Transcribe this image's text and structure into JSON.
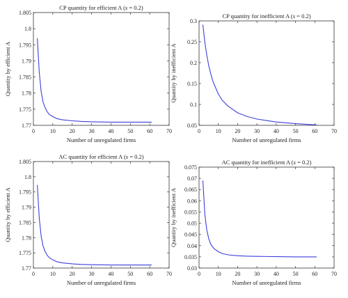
{
  "colors": {
    "line": "#3b3fdc",
    "axis": "#333333",
    "text": "#222222",
    "background": "#ffffff"
  },
  "chart_data": [
    {
      "type": "line",
      "title_parts": [
        "CP quantity for efficient A (",
        "s",
        " = 0.2)"
      ],
      "xlabel": "Number of unregulated firms",
      "ylabel": "Quantity by efficient A",
      "xlim": [
        0,
        70
      ],
      "ylim": [
        1.77,
        1.805
      ],
      "xticks": [
        "0",
        "10",
        "20",
        "30",
        "40",
        "50",
        "60",
        "70"
      ],
      "yticks": [
        "1.77",
        "1.775",
        "1.78",
        "1.785",
        "1.79",
        "1.795",
        "1.8",
        "1.805"
      ],
      "grid": false,
      "series": [
        {
          "x": [
            2,
            3,
            4,
            5,
            6,
            7,
            8,
            10,
            12,
            15,
            20,
            25,
            30,
            40,
            50,
            61
          ],
          "y": [
            1.797,
            1.7865,
            1.7805,
            1.7772,
            1.7755,
            1.7743,
            1.7735,
            1.7727,
            1.7721,
            1.7717,
            1.7714,
            1.7712,
            1.7711,
            1.771,
            1.771,
            1.771
          ]
        }
      ]
    },
    {
      "type": "line",
      "title_parts": [
        "CP quantity for inefficient A (",
        "s",
        " = 0.2)"
      ],
      "xlabel": "Number of unregulated firms",
      "ylabel": "Quantity by inefficient A",
      "xlim": [
        0,
        70
      ],
      "ylim": [
        0.05,
        0.3
      ],
      "xticks": [
        "0",
        "10",
        "20",
        "30",
        "40",
        "50",
        "60",
        "70"
      ],
      "yticks": [
        "0.05",
        "0.1",
        "0.15",
        "0.2",
        "0.25",
        "0.3"
      ],
      "grid": false,
      "series": [
        {
          "x": [
            2,
            3,
            4,
            5,
            6,
            7,
            8,
            10,
            12,
            15,
            20,
            25,
            30,
            40,
            50,
            61
          ],
          "y": [
            0.291,
            0.249,
            0.218,
            0.193,
            0.175,
            0.158,
            0.146,
            0.125,
            0.11,
            0.096,
            0.08,
            0.071,
            0.065,
            0.058,
            0.054,
            0.051
          ]
        }
      ]
    },
    {
      "type": "line",
      "title_parts": [
        "AC quantity for efficient A (",
        "s",
        " = 0.2)"
      ],
      "xlabel": "Number of unregulated firms",
      "ylabel": "Quantity by efficient A",
      "xlim": [
        0,
        70
      ],
      "ylim": [
        1.77,
        1.805
      ],
      "xticks": [
        "0",
        "10",
        "20",
        "30",
        "40",
        "50",
        "60",
        "70"
      ],
      "yticks": [
        "1.77",
        "1.775",
        "1.78",
        "1.785",
        "1.79",
        "1.795",
        "1.8",
        "1.805"
      ],
      "grid": false,
      "series": [
        {
          "x": [
            2,
            3,
            4,
            5,
            6,
            7,
            8,
            10,
            12,
            15,
            20,
            25,
            30,
            40,
            50,
            61
          ],
          "y": [
            1.7973,
            1.7865,
            1.7805,
            1.7772,
            1.7755,
            1.7743,
            1.7735,
            1.7727,
            1.7721,
            1.7717,
            1.7714,
            1.7712,
            1.7711,
            1.771,
            1.771,
            1.771
          ]
        }
      ]
    },
    {
      "type": "line",
      "title_parts": [
        "AC quantity for inefficient A (",
        "s",
        " = 0.2)"
      ],
      "xlabel": "Number of unregulated firms",
      "ylabel": "Quantity by inefficient A",
      "xlim": [
        0,
        70
      ],
      "ylim": [
        0.03,
        0.075
      ],
      "xticks": [
        "0",
        "10",
        "20",
        "30",
        "40",
        "50",
        "60",
        "70"
      ],
      "yticks": [
        "0.03",
        "0.035",
        "0.04",
        "0.045",
        "0.05",
        "0.055",
        "0.06",
        "0.065",
        "0.07",
        "0.075"
      ],
      "grid": false,
      "series": [
        {
          "x": [
            2,
            3,
            4,
            5,
            6,
            7,
            8,
            10,
            12,
            15,
            20,
            25,
            30,
            40,
            50,
            61
          ],
          "y": [
            0.069,
            0.054,
            0.047,
            0.0431,
            0.0408,
            0.0394,
            0.0385,
            0.0373,
            0.0365,
            0.0359,
            0.0355,
            0.0353,
            0.0352,
            0.0351,
            0.035,
            0.035
          ]
        }
      ]
    }
  ]
}
